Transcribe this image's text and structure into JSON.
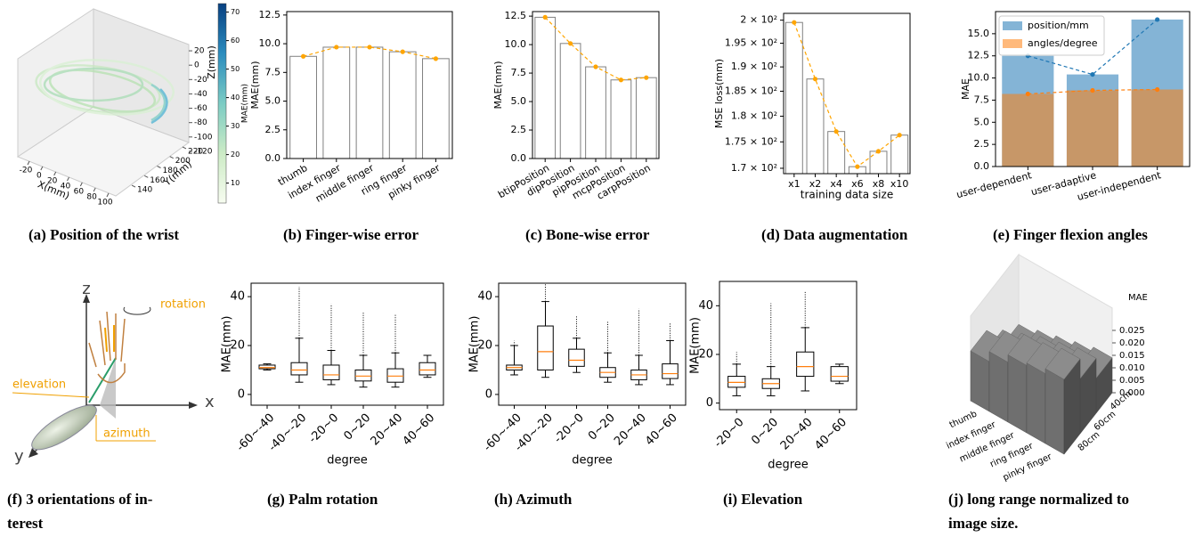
{
  "chart_data": [
    {
      "type": "scatter3d",
      "caption": [
        "(a) Position of the wrist"
      ],
      "xlabel": "X(mm)",
      "ylabel": "Y(mm)",
      "zlabel": "Z(mm)",
      "xticks": [
        -20,
        0,
        20,
        40,
        60,
        80,
        100
      ],
      "xlim": [
        -35,
        110
      ],
      "yticks": [
        140,
        160,
        180,
        200,
        220
      ],
      "ylim": [
        130,
        230
      ],
      "zticks": [
        20,
        0,
        -20,
        -40,
        -60,
        -80,
        -100,
        -120
      ],
      "zlim": [
        30,
        -130
      ],
      "colorbar": {
        "label": "MAE(mm)",
        "ticks": [
          10,
          20,
          30,
          40,
          50,
          60,
          70
        ],
        "lim": [
          3,
          73
        ],
        "colors": [
          "#f7fcf0",
          "#ccebc5",
          "#7bccc4",
          "#2b8cbe",
          "#084081"
        ]
      }
    },
    {
      "type": "bar",
      "caption": [
        "(b) Finger-wise error"
      ],
      "ylabel": "MAE(mm)",
      "categories": [
        "thumb",
        "index finger",
        "middle finger",
        "ring finger",
        "pinky finger"
      ],
      "values": [
        8.9,
        9.7,
        9.7,
        9.3,
        8.7
      ],
      "bar_color": "#ffffff",
      "edge_color": "#808080",
      "line_color": "#ffa500",
      "ylim": [
        0,
        12.8
      ],
      "yticks": [
        {
          "value": 0,
          "label": "0.0"
        },
        {
          "value": 2.5,
          "label": "2.5"
        },
        {
          "value": 5,
          "label": "5.0"
        },
        {
          "value": 7.5,
          "label": "7.5"
        },
        {
          "value": 10,
          "label": "10.0"
        },
        {
          "value": 12.5,
          "label": "12.5"
        }
      ],
      "xtick_rotation": 30
    },
    {
      "type": "bar",
      "caption": [
        "(c) Bone-wise error"
      ],
      "ylabel": "MAE(mm)",
      "categories": [
        "btipPosition",
        "dipPosition",
        "pipPosition",
        "mcpPosition",
        "carpPosition"
      ],
      "values": [
        12.4,
        10.1,
        8.05,
        6.9,
        7.1
      ],
      "bar_color": "#ffffff",
      "edge_color": "#808080",
      "line_color": "#ffa500",
      "ylim": [
        0,
        12.9
      ],
      "yticks": [
        {
          "value": 0,
          "label": "0.0"
        },
        {
          "value": 2.5,
          "label": "2.5"
        },
        {
          "value": 5,
          "label": "5.0"
        },
        {
          "value": 7.5,
          "label": "7.5"
        },
        {
          "value": 10,
          "label": "10.0"
        },
        {
          "value": 12.5,
          "label": "12.5"
        }
      ],
      "xtick_rotation": 30
    },
    {
      "type": "bar",
      "caption": [
        "(d) Data augmentation"
      ],
      "ylabel": "MSE loss(mm)",
      "xlabel": "training data size",
      "yscale": "log",
      "categories": [
        "x1",
        "x2",
        "x4",
        "x6",
        "x8",
        "x10"
      ],
      "values": [
        199.5,
        187.5,
        177,
        170.3,
        173.2,
        176.3
      ],
      "bar_color": "#ffffff",
      "edge_color": "#808080",
      "line_color": "#ffa500",
      "ylim": [
        169,
        201.5
      ],
      "yticks": [
        {
          "value": 170,
          "label": "1.7 × 10²"
        },
        {
          "value": 175,
          "label": "1.75 × 10²"
        },
        {
          "value": 180,
          "label": "1.8 × 10²"
        },
        {
          "value": 185,
          "label": "1.85 × 10²"
        },
        {
          "value": 190,
          "label": "1.9 × 10²"
        },
        {
          "value": 195,
          "label": "1.95 × 10²"
        },
        {
          "value": 200,
          "label": "2 × 10²"
        }
      ],
      "xtick_rotation": 0
    },
    {
      "type": "bar",
      "caption": [
        "(e) Finger flexion angles"
      ],
      "ylabel": "MAE",
      "categories": [
        "user-dependent",
        "user-adaptive",
        "user-independent"
      ],
      "series": [
        {
          "name": "position/mm",
          "color": "#1f77b4",
          "line_color": "#1f77b4",
          "values": [
            12.5,
            10.4,
            16.6
          ]
        },
        {
          "name": "angles/degree",
          "color": "#ff7f0e",
          "line_color": "#ff7f0e",
          "values": [
            8.2,
            8.6,
            8.7
          ]
        }
      ],
      "ylim": [
        0,
        17.5
      ],
      "yticks": [
        {
          "value": 0,
          "label": "0.0"
        },
        {
          "value": 2.5,
          "label": "2.5"
        },
        {
          "value": 5,
          "label": "5.0"
        },
        {
          "value": 7.5,
          "label": "7.5"
        },
        {
          "value": 10,
          "label": "10.0"
        },
        {
          "value": 12.5,
          "label": "12.5"
        },
        {
          "value": 15,
          "label": "15.0"
        }
      ],
      "legend": "upper left",
      "xtick_rotation": 15
    },
    {
      "type": "box",
      "caption": [
        "(g) Palm rotation"
      ],
      "ylabel": "MAE(mm)",
      "xlabel": "degree",
      "categories": [
        "-60~-40",
        "-40~-20",
        "-20~0",
        "0~20",
        "20~40",
        "40~60"
      ],
      "boxes": [
        {
          "low": 10,
          "q1": 10.5,
          "median": 11,
          "q3": 12,
          "high": 12.5,
          "max": 12.5
        },
        {
          "low": 5,
          "q1": 8,
          "median": 10,
          "q3": 13,
          "high": 23,
          "max": 44
        },
        {
          "low": 4,
          "q1": 6,
          "median": 8,
          "q3": 12,
          "high": 18,
          "max": 37
        },
        {
          "low": 3,
          "q1": 5.5,
          "median": 7.5,
          "q3": 10,
          "high": 16,
          "max": 34
        },
        {
          "low": 3,
          "q1": 5,
          "median": 7.5,
          "q3": 10.5,
          "high": 17,
          "max": 33
        },
        {
          "low": 7,
          "q1": 8,
          "median": 10,
          "q3": 13,
          "high": 16,
          "max": 16
        }
      ],
      "ylim": [
        -4.4,
        45.5
      ],
      "yticks": [
        0,
        20,
        40
      ],
      "box_color": "#000000",
      "median_color": "#ff7f0e"
    },
    {
      "type": "box",
      "caption": [
        "(h) Azimuth"
      ],
      "ylabel": "MAE(mm)",
      "xlabel": "degree",
      "categories": [
        "-60~-40",
        "-40~-20",
        "-20~0",
        "0~20",
        "20~40",
        "40~60"
      ],
      "boxes": [
        {
          "low": 8,
          "q1": 10,
          "median": 11,
          "q3": 12,
          "high": 20,
          "max": 22
        },
        {
          "low": 7,
          "q1": 10,
          "median": 17.5,
          "q3": 28,
          "high": 38,
          "max": 45
        },
        {
          "low": 9,
          "q1": 11.5,
          "median": 14,
          "q3": 18.5,
          "high": 23,
          "max": 32
        },
        {
          "low": 5,
          "q1": 7,
          "median": 9,
          "q3": 11,
          "high": 17,
          "max": 30
        },
        {
          "low": 4,
          "q1": 6,
          "median": 8,
          "q3": 10,
          "high": 16,
          "max": 35
        },
        {
          "low": 4,
          "q1": 6.5,
          "median": 8.5,
          "q3": 12.5,
          "high": 22,
          "max": 29
        }
      ],
      "ylim": [
        -4.4,
        45.5
      ],
      "yticks": [
        0,
        20,
        40
      ],
      "box_color": "#000000",
      "median_color": "#ff7f0e"
    },
    {
      "type": "box",
      "caption": [
        "(i) Elevation"
      ],
      "ylabel": "MAE(mm)",
      "xlabel": "degree",
      "categories": [
        "-20~0",
        "0~20",
        "20~40",
        "40~60"
      ],
      "boxes": [
        {
          "low": 3,
          "q1": 6.5,
          "median": 8.5,
          "q3": 11,
          "high": 16,
          "max": 21
        },
        {
          "low": 3,
          "q1": 6,
          "median": 8,
          "q3": 10,
          "high": 15,
          "max": 41
        },
        {
          "low": 5,
          "q1": 11,
          "median": 15,
          "q3": 21,
          "high": 31,
          "max": 46
        },
        {
          "low": 8,
          "q1": 9,
          "median": 11,
          "q3": 15,
          "high": 16,
          "max": 16
        }
      ],
      "ylim": [
        -2.7,
        50
      ],
      "yticks": [
        0,
        20,
        40
      ],
      "box_color": "#000000",
      "median_color": "#ff7f0e"
    },
    {
      "type": "bar3d",
      "caption": [
        "(j) long range normalized to",
        "image size."
      ],
      "zlabel": "MAE",
      "categories": [
        "thumb",
        "index finger",
        "middle finger",
        "ring finger",
        "pinky finger"
      ],
      "depth_categories": [
        "40cm",
        "60cm",
        "80cm"
      ],
      "values": [
        [
          0.006,
          0.008,
          0.01,
          0.012,
          0.014
        ],
        [
          0.012,
          0.015,
          0.018,
          0.02,
          0.022
        ],
        [
          0.02,
          0.024,
          0.027,
          0.028,
          0.03
        ]
      ],
      "zticks": [
        {
          "value": 0,
          "label": "0.000"
        },
        {
          "value": 0.005,
          "label": "0.005"
        },
        {
          "value": 0.01,
          "label": "0.010"
        },
        {
          "value": 0.015,
          "label": "0.015"
        },
        {
          "value": 0.02,
          "label": "0.020"
        },
        {
          "value": 0.025,
          "label": "0.025"
        }
      ],
      "color": "#808080"
    }
  ],
  "diagram": {
    "caption": [
      "(f) 3 orientations of in-",
      "terest"
    ],
    "labels": {
      "z": "z",
      "x": "x",
      "y": "y",
      "rotation": "rotation",
      "elevation": "elevation",
      "azimuth": "azimuth"
    }
  }
}
